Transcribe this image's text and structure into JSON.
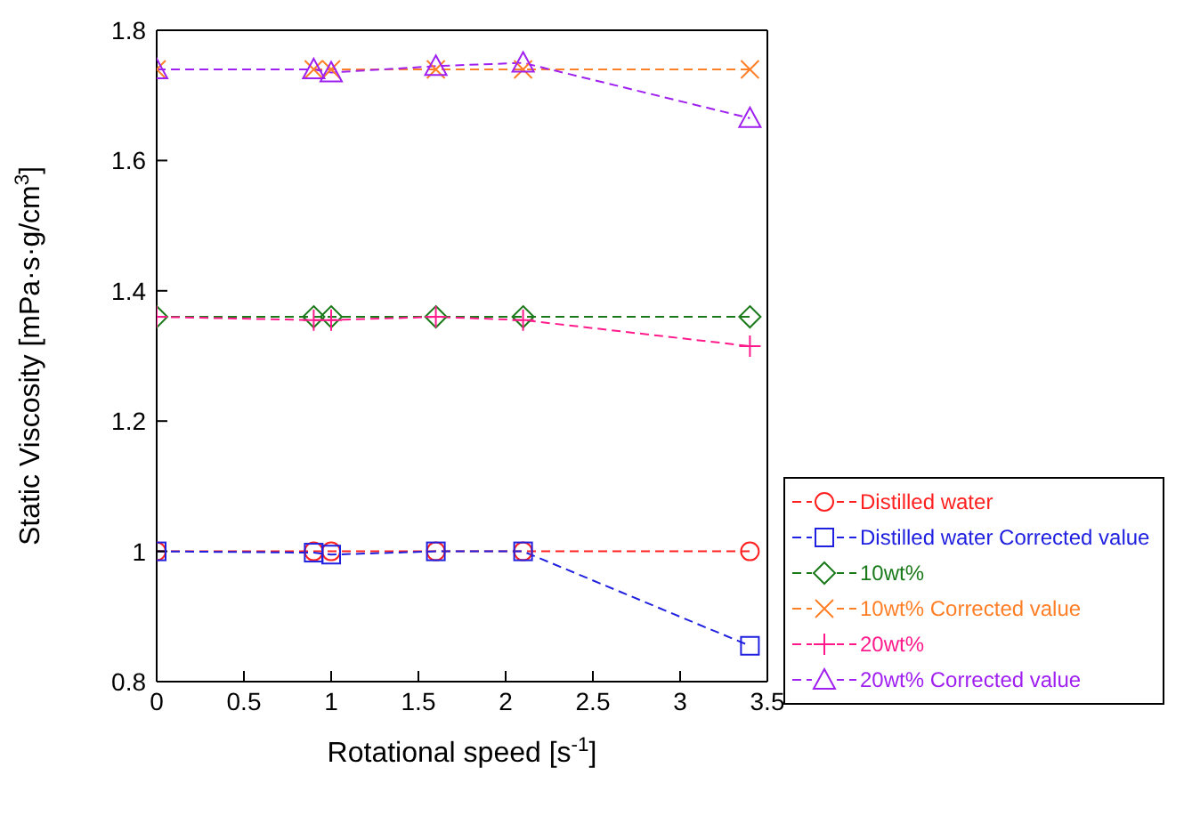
{
  "chart_data": {
    "type": "line",
    "xlabel": "Rotational speed [s$^{-1}$]",
    "ylabel": "Static Viscosity [mPa·s·g/cm$^{3}$]",
    "x": [
      0,
      0.9,
      1.0,
      1.6,
      2.1,
      3.4
    ],
    "xlim": [
      0,
      3.5
    ],
    "xticks": [
      0,
      0.5,
      1,
      1.5,
      2,
      2.5,
      3,
      3.5
    ],
    "ylim": [
      0.8,
      1.8
    ],
    "yticks": [
      0.8,
      1,
      1.2,
      1.4,
      1.6,
      1.8
    ],
    "legend": "right",
    "line_style": "dashed",
    "series": [
      {
        "name": "Distilled water",
        "color": "#ff2020",
        "marker": "circle",
        "values": [
          1.0,
          1.0,
          1.0,
          1.0,
          1.0,
          1.0
        ]
      },
      {
        "name": "Distilled water Corrected value",
        "color": "#2020e0",
        "marker": "square",
        "values": [
          1.0,
          0.998,
          0.995,
          1.0,
          1.0,
          0.855
        ]
      },
      {
        "name": "10wt%",
        "color": "#1a7a1a",
        "marker": "diamond",
        "values": [
          1.36,
          1.36,
          1.36,
          1.36,
          1.36,
          1.36
        ]
      },
      {
        "name": "10wt% Corrected value",
        "color": "#ff7f27",
        "marker": "cross",
        "values": [
          1.74,
          1.74,
          1.74,
          1.74,
          1.74,
          1.74
        ]
      },
      {
        "name": "20wt%",
        "color": "#ff1a8c",
        "marker": "plus",
        "values": [
          1.36,
          1.355,
          1.355,
          1.36,
          1.355,
          1.315
        ]
      },
      {
        "name": "20wt% Corrected value",
        "color": "#a020f0",
        "marker": "triangle",
        "values": [
          1.74,
          1.74,
          1.735,
          1.745,
          1.75,
          1.665
        ]
      }
    ]
  }
}
